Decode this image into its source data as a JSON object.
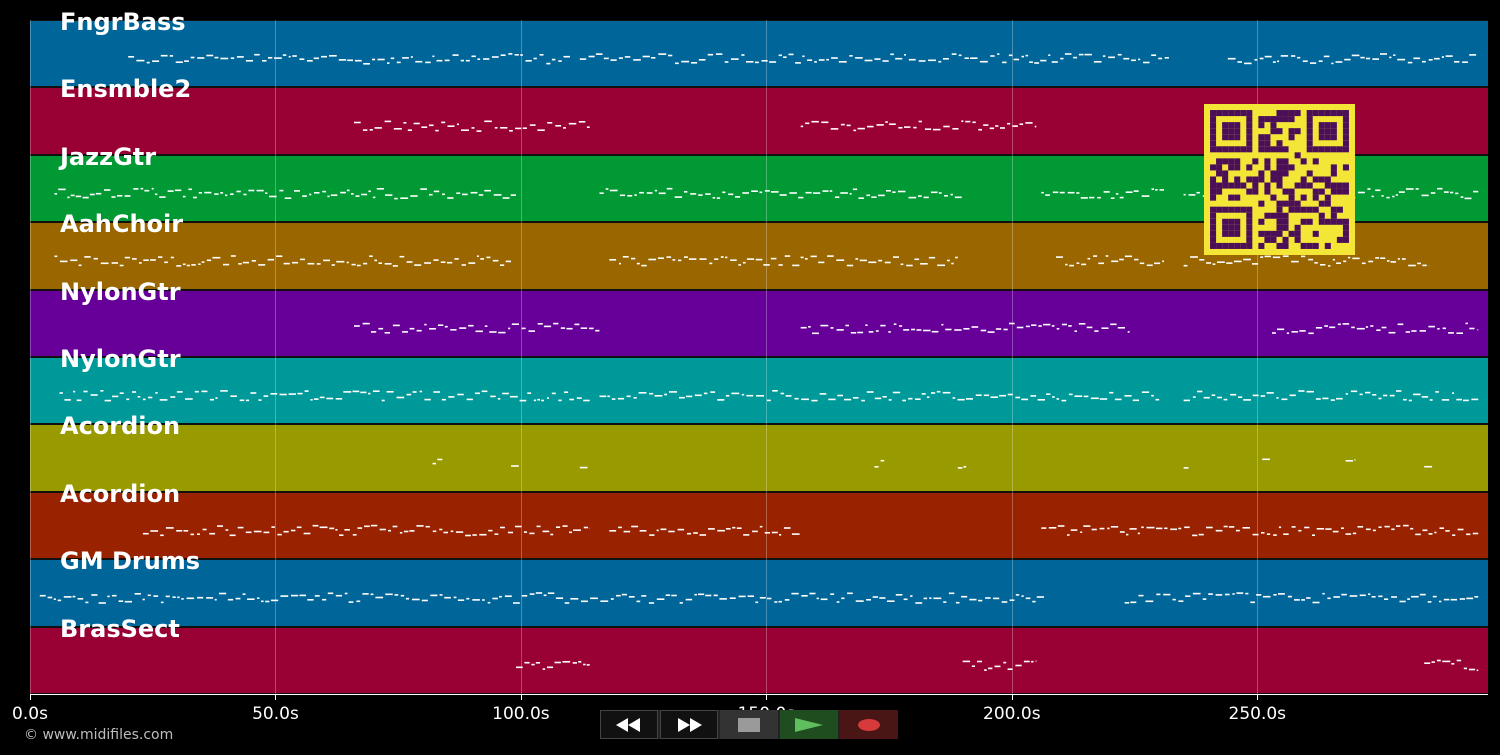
{
  "tracks": [
    {
      "name": "FngrBass",
      "color": "#006699"
    },
    {
      "name": "Ensmble2",
      "color": "#990033"
    },
    {
      "name": "JazzGtr",
      "color": "#009933"
    },
    {
      "name": "AahChoir",
      "color": "#996600"
    },
    {
      "name": "NylonGtr",
      "color": "#660099"
    },
    {
      "name": "NylonGtr",
      "color": "#009999"
    },
    {
      "name": "Acordion",
      "color": "#999900"
    },
    {
      "name": "Acordion",
      "color": "#992200"
    },
    {
      "name": "GM Drums",
      "color": "#006699"
    },
    {
      "name": "BrasSect",
      "color": "#990033"
    }
  ],
  "time_axis": {
    "min": 0,
    "max": 297,
    "ticks": [
      {
        "value": 0,
        "label": "0.0s"
      },
      {
        "value": 50,
        "label": "50.0s"
      },
      {
        "value": 100,
        "label": "100.0s"
      },
      {
        "value": 150,
        "label": "150.0s"
      },
      {
        "value": 200,
        "label": "200.0s"
      },
      {
        "value": 250,
        "label": "250.0s"
      }
    ]
  },
  "note_segments": [
    [
      [
        20,
        110
      ],
      [
        112,
        232
      ],
      [
        244,
        295
      ]
    ],
    [
      [
        66,
        114
      ],
      [
        157,
        205
      ]
    ],
    [
      [
        5,
        99
      ],
      [
        116,
        190
      ],
      [
        206,
        231
      ],
      [
        235,
        295
      ]
    ],
    [
      [
        5,
        98
      ],
      [
        118,
        189
      ],
      [
        209,
        231
      ],
      [
        235,
        285
      ]
    ],
    [
      [
        66,
        116
      ],
      [
        157,
        224
      ],
      [
        253,
        295
      ]
    ],
    [
      [
        6,
        114
      ],
      [
        116,
        230
      ],
      [
        235,
        295
      ]
    ],
    [
      [
        82,
        84
      ],
      [
        98,
        100
      ],
      [
        112,
        114
      ],
      [
        172,
        174
      ],
      [
        189,
        191
      ],
      [
        235,
        236
      ],
      [
        251,
        253
      ],
      [
        268,
        270
      ],
      [
        284,
        286
      ]
    ],
    [
      [
        23,
        114
      ],
      [
        118,
        157
      ],
      [
        206,
        295
      ]
    ],
    [
      [
        2,
        207
      ],
      [
        223,
        295
      ]
    ],
    [
      [
        99,
        114
      ],
      [
        190,
        205
      ],
      [
        284,
        295
      ]
    ]
  ],
  "copyright": "© www.midifiles.com",
  "transport": {
    "buttons": [
      {
        "name": "rewind-button",
        "icon": "rewind-icon"
      },
      {
        "name": "fast-forward-button",
        "icon": "fast-forward-icon"
      },
      {
        "name": "stop-button",
        "icon": "stop-icon"
      },
      {
        "name": "play-button",
        "icon": "play-icon"
      },
      {
        "name": "record-button",
        "icon": "record-icon"
      }
    ]
  },
  "qr_icon": "qr-code-icon"
}
